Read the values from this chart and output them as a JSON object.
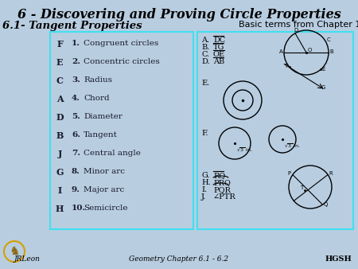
{
  "title": "6 - Discovering and Proving Circle Properties",
  "subtitle": "6.1- Tangent Properties",
  "basic_terms_title": "Basic terms from Chapter 1",
  "bg_color": "#b8cde0",
  "box_color": "#40e0f0",
  "left_letters": [
    "F",
    "E",
    "C",
    "A",
    "D",
    "B",
    "J",
    "G",
    "I",
    "H"
  ],
  "left_numbers": [
    "1.",
    "2.",
    "3.",
    "4.",
    "5.",
    "6.",
    "7.",
    "8.",
    "9.",
    "10."
  ],
  "left_terms": [
    "Congruent circles",
    "Concentric circles",
    "Radius",
    "Chord",
    "Diameter",
    "Tangent",
    "Central angle",
    "Minor arc",
    "Major arc",
    "Semicircle"
  ],
  "footer_left": "JRLeon",
  "footer_center": "Geometry Chapter 6.1 - 6.2",
  "footer_right": "HGSH"
}
